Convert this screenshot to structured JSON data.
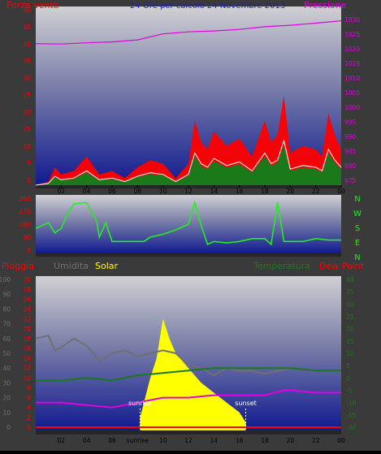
{
  "colors": {
    "background": "#3a3a3a",
    "plot_top": "#c8c8cc",
    "plot_bottom": "#101a90",
    "wind_speed": "#ff0000",
    "wind_gust_overlay": "#1a7a1a",
    "wind_avg_line": "#ffffff",
    "pressure": "#e000e0",
    "wind_dir": "#22ee22",
    "rain": "#ff0000",
    "humidity": "#707070",
    "solar": "#ffff00",
    "temperature": "#1a7a1a",
    "dew_point": "#e000e0",
    "date_title": "#2020c0"
  },
  "chart_data": [
    {
      "type": "line",
      "title": "24 Ore per calcolo 24 Novembre 2013",
      "left_label": "Forza vento",
      "right_label": "Pressione",
      "x_ticks": [
        "02",
        "04",
        "06",
        "08",
        "10",
        "12",
        "14",
        "16",
        "18",
        "20",
        "22",
        "00"
      ],
      "y_left_ticks": [
        "0",
        "5",
        "10",
        "15",
        "20",
        "25",
        "30",
        "35",
        "40",
        "45",
        "50"
      ],
      "y_left_range": [
        0,
        50
      ],
      "y_right_ticks": [
        "975",
        "980",
        "985",
        "990",
        "995",
        "1000",
        "1005",
        "1010",
        "1015",
        "1020",
        "1025",
        "1030"
      ],
      "y_right_range": [
        973,
        1033
      ],
      "series": [
        {
          "name": "Pressione",
          "x": [
            0,
            2,
            4,
            6,
            8,
            10,
            12,
            14,
            16,
            18,
            20,
            22,
            24
          ],
          "values": [
            1020.5,
            1020.4,
            1020.8,
            1021.1,
            1021.8,
            1023.8,
            1024.5,
            1024.8,
            1025.3,
            1026.2,
            1026.7,
            1027.4,
            1028.2
          ]
        },
        {
          "name": "Forza vento",
          "x": [
            0,
            1,
            1.5,
            2,
            3,
            4,
            5,
            6,
            7,
            8,
            9,
            10,
            11,
            12,
            12.5,
            13,
            13.5,
            14,
            15,
            16,
            17,
            18,
            18.5,
            19,
            19.5,
            20,
            21,
            22,
            22.5,
            23,
            23.5,
            24
          ],
          "values": [
            0,
            1,
            5,
            3,
            4,
            8,
            3,
            4,
            2,
            5,
            7,
            6,
            2,
            6,
            18,
            12,
            10,
            15,
            11,
            13,
            8,
            18,
            12,
            14,
            25,
            9,
            11,
            10,
            8,
            20,
            14,
            10
          ]
        }
      ]
    },
    {
      "type": "line",
      "right_label": [
        "N",
        "W",
        "S",
        "E",
        "N"
      ],
      "x_ticks": [
        "02",
        "04",
        "06",
        "08",
        "10",
        "12",
        "14",
        "16",
        "18",
        "20",
        "22",
        "00"
      ],
      "y_ticks": [
        "0",
        "90",
        "180",
        "270",
        "360"
      ],
      "y_range": [
        0,
        360
      ],
      "series": [
        {
          "name": "Direzione vento",
          "x": [
            0,
            1,
            1.5,
            2,
            2.5,
            3,
            4,
            4.8,
            5,
            5.5,
            6,
            7,
            8,
            8.5,
            9,
            10,
            11,
            12,
            12.5,
            13,
            13.5,
            14,
            15,
            16,
            17,
            18,
            18.5,
            19,
            19.5,
            20,
            21,
            22,
            23,
            24
          ],
          "values": [
            150,
            190,
            120,
            150,
            250,
            320,
            330,
            200,
            90,
            190,
            60,
            60,
            60,
            60,
            90,
            110,
            140,
            180,
            330,
            170,
            40,
            60,
            50,
            60,
            80,
            80,
            40,
            330,
            60,
            60,
            60,
            80,
            70,
            70
          ]
        }
      ]
    },
    {
      "type": "line",
      "left_labels": [
        "Pioggia",
        "Umidita",
        "Solar"
      ],
      "right_labels": [
        "Temperatura",
        "Dew Point"
      ],
      "x_ticks": [
        "02",
        "04",
        "06",
        "sunrise",
        "10",
        "12",
        "14",
        "16",
        "18",
        "20",
        "22",
        "00"
      ],
      "x_tick_values": [
        2,
        4,
        6,
        8,
        10,
        12,
        14,
        16,
        18,
        20,
        22,
        24
      ],
      "annotations": [
        {
          "text": "sunrise",
          "x": 8.2
        },
        {
          "text": "sunset",
          "x": 16.5
        }
      ],
      "y_left_outer_ticks": [
        "0",
        "10",
        "20",
        "30",
        "40",
        "50",
        "60",
        "70",
        "80",
        "90",
        "100"
      ],
      "y_left_inner_ticks": [
        "0",
        "2",
        "4",
        "6",
        "8",
        "10",
        "12",
        "14",
        "16",
        "18",
        "20",
        "22",
        "24",
        "26",
        "28",
        "30"
      ],
      "y_right_ticks": [
        "-20",
        "-15",
        "-10",
        "-5",
        "0",
        "5",
        "10",
        "15",
        "20",
        "25",
        "30",
        "35",
        "40"
      ],
      "y_right_range": [
        -20,
        40
      ],
      "series": [
        {
          "name": "Umidita",
          "x": [
            0,
            1,
            1.5,
            2,
            3,
            4,
            5,
            6,
            7,
            8,
            9,
            10,
            11,
            12,
            13,
            14,
            15,
            16,
            17,
            18,
            19,
            20
          ],
          "values": [
            60,
            62,
            52,
            54,
            60,
            55,
            45,
            50,
            52,
            48,
            50,
            52,
            50,
            42,
            40,
            35,
            40,
            38,
            38,
            36,
            38,
            40
          ]
        },
        {
          "name": "Temperatura",
          "x": [
            0,
            2,
            4,
            6,
            8,
            10,
            12,
            14,
            16,
            18,
            20,
            22,
            24
          ],
          "values": [
            -1,
            -1,
            0,
            -1,
            1,
            2,
            3,
            4,
            4,
            4,
            4,
            3,
            3
          ]
        },
        {
          "name": "Dew Point",
          "x": [
            0,
            2,
            4,
            6,
            8,
            10,
            12,
            14,
            16,
            18,
            19.5,
            20,
            22,
            24
          ],
          "values": [
            -10,
            -10,
            -11,
            -12,
            -10,
            -8,
            -8,
            -7,
            -7,
            -7,
            -5,
            -5,
            -6,
            -6
          ]
        },
        {
          "name": "Solar",
          "x": [
            8.2,
            9,
            9.5,
            10,
            10.5,
            11,
            12,
            13,
            14,
            15,
            16,
            16.5
          ],
          "values": [
            2,
            10,
            14,
            22,
            18,
            15,
            12,
            9,
            7,
            5,
            3,
            1
          ]
        },
        {
          "name": "Pioggia",
          "x": [
            0,
            24
          ],
          "values": [
            0,
            0
          ]
        }
      ]
    }
  ]
}
